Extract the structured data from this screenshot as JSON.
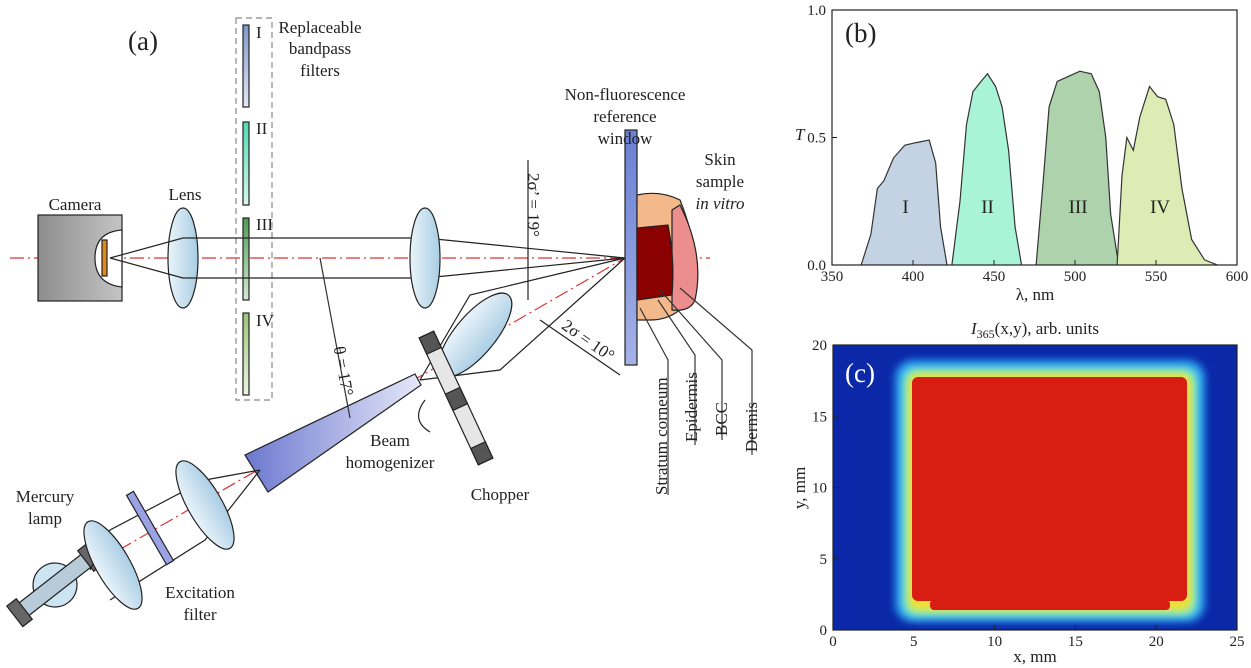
{
  "diagram": {
    "label": "(a)",
    "filters_title": [
      "Replaceable",
      "bandpass",
      "filters"
    ],
    "filters": [
      "I",
      "II",
      "III",
      "IV"
    ],
    "camera": "Camera",
    "lens": "Lens",
    "window": [
      "Non-fluorescence",
      "reference",
      "window"
    ],
    "skin": [
      "Skin",
      "sample"
    ],
    "skin_note": "in vitro",
    "angle_out": "2σ’ = 19°",
    "angle_in": "2σ = 10°",
    "theta": "θ = 17°",
    "homogenizer": [
      "Beam",
      "homogenizer"
    ],
    "chopper": "Chopper",
    "lamp": [
      "Mercury",
      "lamp"
    ],
    "excitation": [
      "Excitation",
      "filter"
    ],
    "layers": [
      "Stratum corneum",
      "Epidermis",
      "BCC",
      "Dermis"
    ]
  },
  "chart_data": [
    {
      "type": "area",
      "label": "(b)",
      "x_label": "λ, nm",
      "y_label": "T",
      "xlim": [
        350,
        600
      ],
      "xticks": [
        350,
        400,
        450,
        500,
        550,
        600
      ],
      "ylim": [
        0,
        1
      ],
      "yticks": [
        {
          "value": 0,
          "label": "0.0"
        },
        0.5,
        {
          "value": 1,
          "label": "1.0"
        }
      ],
      "series": [
        {
          "name": "I",
          "color": "#c3d3e3",
          "x": [
            368,
            374,
            378,
            382,
            388,
            395,
            402,
            410,
            414,
            417,
            421
          ],
          "values": [
            0,
            0.12,
            0.3,
            0.33,
            0.42,
            0.47,
            0.48,
            0.49,
            0.4,
            0.15,
            0
          ]
        },
        {
          "name": "II",
          "color": "#a9f3d8",
          "x": [
            424,
            429,
            433,
            437,
            442,
            446,
            451,
            455,
            459,
            463,
            467
          ],
          "values": [
            0,
            0.25,
            0.55,
            0.68,
            0.72,
            0.75,
            0.7,
            0.62,
            0.45,
            0.15,
            0
          ]
        },
        {
          "name": "III",
          "color": "#aed2ab",
          "x": [
            476,
            480,
            484,
            489,
            496,
            503,
            510,
            515,
            519,
            522,
            527
          ],
          "values": [
            0,
            0.3,
            0.62,
            0.72,
            0.74,
            0.76,
            0.75,
            0.68,
            0.5,
            0.2,
            0
          ]
        },
        {
          "name": "IV",
          "color": "#dcecb4",
          "x": [
            526,
            529,
            532,
            536,
            540,
            546,
            551,
            556,
            561,
            566,
            572,
            580,
            588
          ],
          "values": [
            0,
            0.35,
            0.5,
            0.45,
            0.58,
            0.7,
            0.66,
            0.65,
            0.55,
            0.3,
            0.1,
            0.02,
            0
          ]
        }
      ]
    },
    {
      "type": "heatmap",
      "label": "(c)",
      "title": [
        "I",
        "365",
        "(x,y), arb. units"
      ],
      "x_label": "x, mm",
      "y_label": "y, mm",
      "xlim": [
        0,
        25
      ],
      "xticks": [
        0,
        5,
        10,
        15,
        20,
        25
      ],
      "ylim": [
        0,
        20
      ],
      "yticks": [
        0,
        5,
        10,
        15,
        20
      ]
    }
  ]
}
